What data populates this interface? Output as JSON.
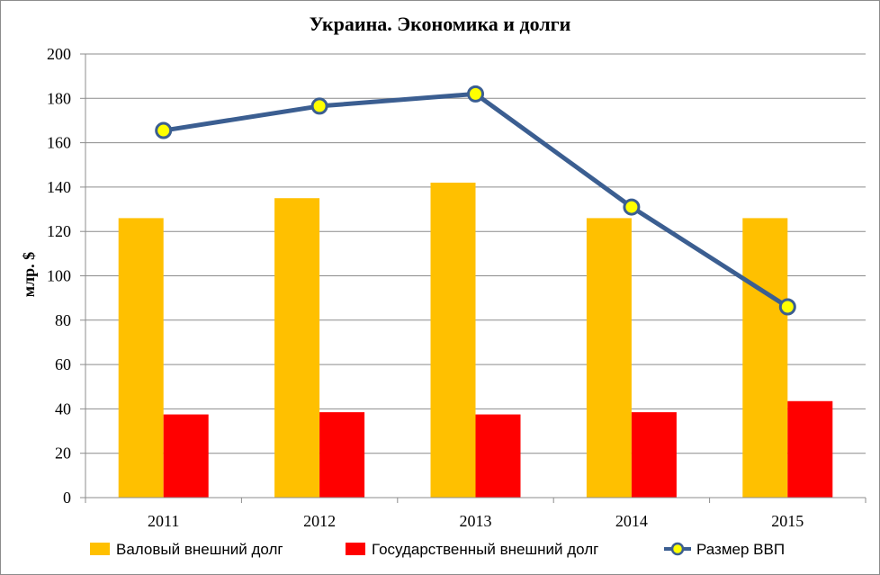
{
  "chart_data": {
    "type": "bar",
    "title": "Украина. Экономика и долги",
    "xlabel": "",
    "ylabel": "млр. $",
    "ylim": [
      0,
      200
    ],
    "yticks": [
      "0",
      "20",
      "40",
      "60",
      "80",
      "100",
      "120",
      "140",
      "160",
      "180",
      "200"
    ],
    "categories": [
      "2011",
      "2012",
      "2013",
      "2014",
      "2015"
    ],
    "grid": true,
    "legend_position": "bottom",
    "series": [
      {
        "name": "Валовый внешний долг",
        "kind": "bar",
        "color": "#FFC000",
        "values": [
          126,
          135,
          142,
          126,
          126
        ]
      },
      {
        "name": "Государственный внешний долг",
        "kind": "bar",
        "color": "#FF0000",
        "values": [
          37.5,
          38.5,
          37.5,
          38.5,
          43.5
        ]
      },
      {
        "name": "Размер ВВП",
        "kind": "line",
        "color": "#3B5E91",
        "marker_color": "#FFFF00",
        "values": [
          165.5,
          176.5,
          182,
          131,
          86
        ]
      }
    ]
  }
}
